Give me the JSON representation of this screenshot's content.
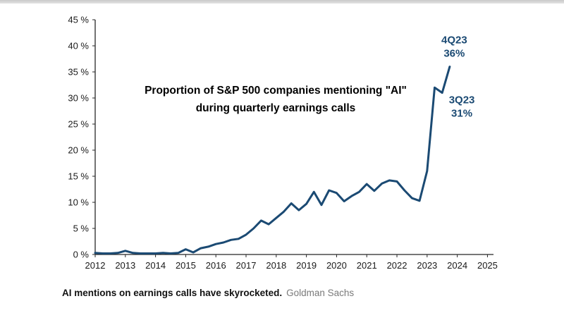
{
  "caption": {
    "bold": "AI mentions on earnings calls have skyrocketed.",
    "source": "Goldman Sachs"
  },
  "chart_data": {
    "type": "line",
    "title_line1": "Proportion of S&P 500 companies mentioning \"AI\"",
    "title_line2": "during quarterly earnings calls",
    "xlabel": "",
    "ylabel": "",
    "xlim": [
      2012,
      2025.2
    ],
    "ylim": [
      0,
      45
    ],
    "x_ticks": [
      2012,
      2013,
      2014,
      2015,
      2016,
      2017,
      2018,
      2019,
      2020,
      2021,
      2022,
      2023,
      2024,
      2025
    ],
    "y_ticks": [
      0,
      5,
      10,
      15,
      20,
      25,
      30,
      35,
      40,
      45
    ],
    "y_tick_suffix": " %",
    "line_color": "#1b4a73",
    "annotation_color": "#1b4a73",
    "x": [
      2012.0,
      2012.25,
      2012.5,
      2012.75,
      2013.0,
      2013.25,
      2013.5,
      2013.75,
      2014.0,
      2014.25,
      2014.5,
      2014.75,
      2015.0,
      2015.25,
      2015.5,
      2015.75,
      2016.0,
      2016.25,
      2016.5,
      2016.75,
      2017.0,
      2017.25,
      2017.5,
      2017.75,
      2018.0,
      2018.25,
      2018.5,
      2018.75,
      2019.0,
      2019.25,
      2019.5,
      2019.75,
      2020.0,
      2020.25,
      2020.5,
      2020.75,
      2021.0,
      2021.25,
      2021.5,
      2021.75,
      2022.0,
      2022.25,
      2022.5,
      2022.75,
      2023.0,
      2023.25,
      2023.5,
      2023.75
    ],
    "values": [
      0.3,
      0.2,
      0.2,
      0.3,
      0.7,
      0.3,
      0.2,
      0.2,
      0.2,
      0.3,
      0.2,
      0.3,
      1.0,
      0.4,
      1.2,
      1.5,
      2.0,
      2.3,
      2.8,
      3.0,
      3.8,
      5.0,
      6.5,
      5.8,
      7.0,
      8.2,
      9.8,
      8.5,
      9.7,
      12.0,
      9.5,
      12.3,
      11.8,
      10.2,
      11.2,
      12.0,
      13.5,
      12.2,
      13.6,
      14.2,
      14.0,
      12.3,
      10.8,
      10.3,
      16.0,
      32.0,
      31.0,
      36.0
    ],
    "annotations": [
      {
        "lines": [
          "4Q23",
          "36%"
        ],
        "x": 2023.9,
        "y": 40.5
      },
      {
        "lines": [
          "3Q23",
          "31%"
        ],
        "x": 2024.15,
        "y": 29.0
      }
    ]
  }
}
